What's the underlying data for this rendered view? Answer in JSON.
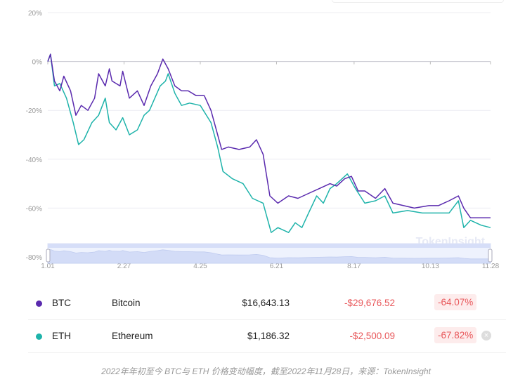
{
  "chart_data": {
    "type": "line",
    "title": "",
    "xlabel": "",
    "ylabel": "",
    "x_unit": "days since 1.01 (2022)",
    "xlim": [
      0,
      331
    ],
    "ylim": [
      -80,
      20
    ],
    "yticks": [
      20,
      0,
      -20,
      -40,
      -60,
      -80
    ],
    "ytick_labels": [
      "20%",
      "0%",
      "-20%",
      "-40%",
      "-60%",
      "-80%"
    ],
    "xticks": [
      0,
      57,
      114,
      171,
      229,
      286,
      331
    ],
    "xtick_labels": [
      "1.01",
      "2.27",
      "4.25",
      "6.21",
      "8.17",
      "10.13",
      "11.28"
    ],
    "grid": true,
    "watermark": "TokenInsight",
    "series": [
      {
        "name": "BTC",
        "color": "#5a2aae",
        "x": [
          0,
          2,
          5,
          9,
          12,
          17,
          21,
          25,
          30,
          35,
          38,
          43,
          46,
          48,
          54,
          56,
          61,
          67,
          72,
          77,
          82,
          86,
          90,
          95,
          100,
          105,
          111,
          117,
          122,
          127,
          130,
          135,
          143,
          151,
          156,
          161,
          166,
          172,
          180,
          187,
          195,
          203,
          211,
          216,
          222,
          227,
          232,
          237,
          245,
          252,
          258,
          266,
          274,
          285,
          292,
          300,
          307,
          311,
          316,
          324,
          331
        ],
        "y": [
          0,
          3,
          -8,
          -12,
          -6,
          -12,
          -22,
          -18,
          -20,
          -15,
          -5,
          -10,
          -3,
          -8,
          -10,
          -4,
          -15,
          -12,
          -18,
          -10,
          -5,
          1,
          -3,
          -10,
          -12,
          -12,
          -14,
          -14,
          -20,
          -30,
          -36,
          -35,
          -36,
          -35,
          -32,
          -38,
          -55,
          -58,
          -55,
          -56,
          -54,
          -52,
          -50,
          -51,
          -48,
          -47,
          -53,
          -53,
          -56,
          -52,
          -58,
          -59,
          -60,
          -59,
          -59,
          -57,
          -55,
          -60,
          -64,
          -64,
          -64
        ]
      },
      {
        "name": "ETH",
        "color": "#1eb3aa",
        "x": [
          0,
          2,
          5,
          9,
          14,
          19,
          23,
          27,
          33,
          38,
          43,
          46,
          51,
          56,
          61,
          67,
          72,
          76,
          80,
          84,
          88,
          90,
          95,
          100,
          106,
          114,
          122,
          127,
          131,
          138,
          146,
          153,
          161,
          167,
          172,
          180,
          185,
          190,
          195,
          201,
          206,
          211,
          216,
          224,
          230,
          237,
          245,
          252,
          258,
          269,
          280,
          290,
          300,
          307,
          311,
          316,
          324,
          331
        ],
        "y": [
          0,
          3,
          -10,
          -9,
          -15,
          -25,
          -34,
          -32,
          -25,
          -22,
          -15,
          -25,
          -28,
          -23,
          -30,
          -28,
          -22,
          -20,
          -15,
          -10,
          -8,
          -5,
          -13,
          -18,
          -17,
          -18,
          -25,
          -35,
          -45,
          -48,
          -50,
          -56,
          -58,
          -70,
          -68,
          -70,
          -66,
          -68,
          -62,
          -55,
          -58,
          -52,
          -50,
          -46,
          -52,
          -58,
          -57,
          -55,
          -62,
          -61,
          -62,
          -62,
          -62,
          -57,
          -68,
          -65,
          -67,
          -68
        ]
      }
    ]
  },
  "table": [
    {
      "symbol": "BTC",
      "name": "Bitcoin",
      "price": "$16,643.13",
      "change": "-$29,676.52",
      "pct": "-64.07%",
      "color": "#5a2aae"
    },
    {
      "symbol": "ETH",
      "name": "Ethereum",
      "price": "$1,186.32",
      "change": "-$2,500.09",
      "pct": "-67.82%",
      "color": "#1eb3aa",
      "remove_icon": "×"
    }
  ],
  "caption": "2022年年初至今 BTC与 ETH 价格变动幅度，截至2022年11月28日，来源：TokenInsight"
}
